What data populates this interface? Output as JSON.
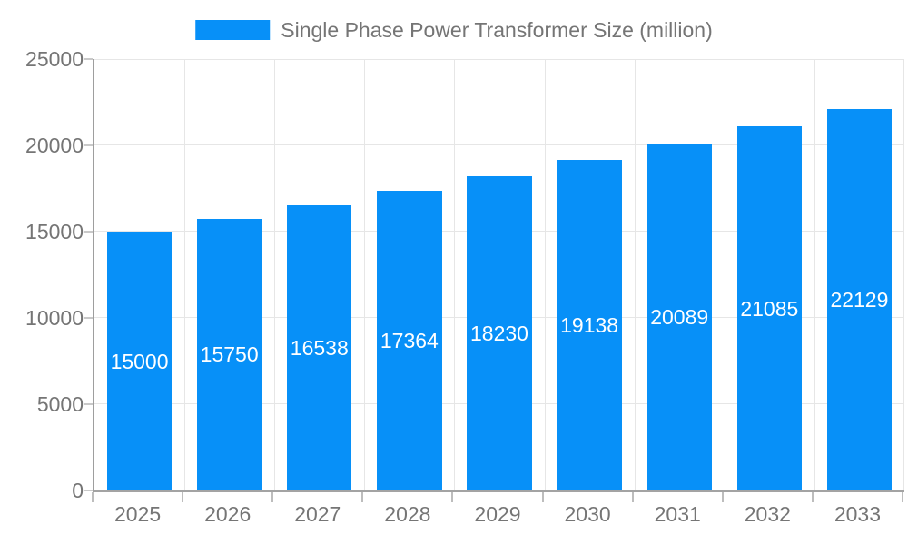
{
  "legend": {
    "label": "Single Phase Power Transformer Size (million)"
  },
  "chart_data": {
    "type": "bar",
    "title": "Single Phase Power Transformer Size (million)",
    "categories": [
      "2025",
      "2026",
      "2027",
      "2028",
      "2029",
      "2030",
      "2031",
      "2032",
      "2033"
    ],
    "series": [
      {
        "name": "Single Phase Power Transformer Size (million)",
        "values": [
          15000,
          15750,
          16538,
          17364,
          18230,
          19138,
          20089,
          21085,
          22129
        ]
      }
    ],
    "bar_value_labels": [
      "15000",
      "15750",
      "16538",
      "17364",
      "18230",
      "19138",
      "20089",
      "21085",
      "22129"
    ],
    "xlabel": "",
    "ylabel": "",
    "ylim": [
      0,
      25000
    ],
    "yticks": [
      0,
      5000,
      10000,
      15000,
      20000,
      25000
    ],
    "ytick_labels": [
      "0",
      "5000",
      "10000",
      "15000",
      "20000",
      "25000"
    ],
    "grid": true,
    "legend_position": "top"
  },
  "colors": {
    "bar": "#0790f8",
    "axis_text": "#757575",
    "bar_label_text": "#ffffff",
    "grid_line": "#e6e6e6",
    "axis_line": "#9e9e9e",
    "tick": "#bdbdbd",
    "background": "#ffffff"
  }
}
